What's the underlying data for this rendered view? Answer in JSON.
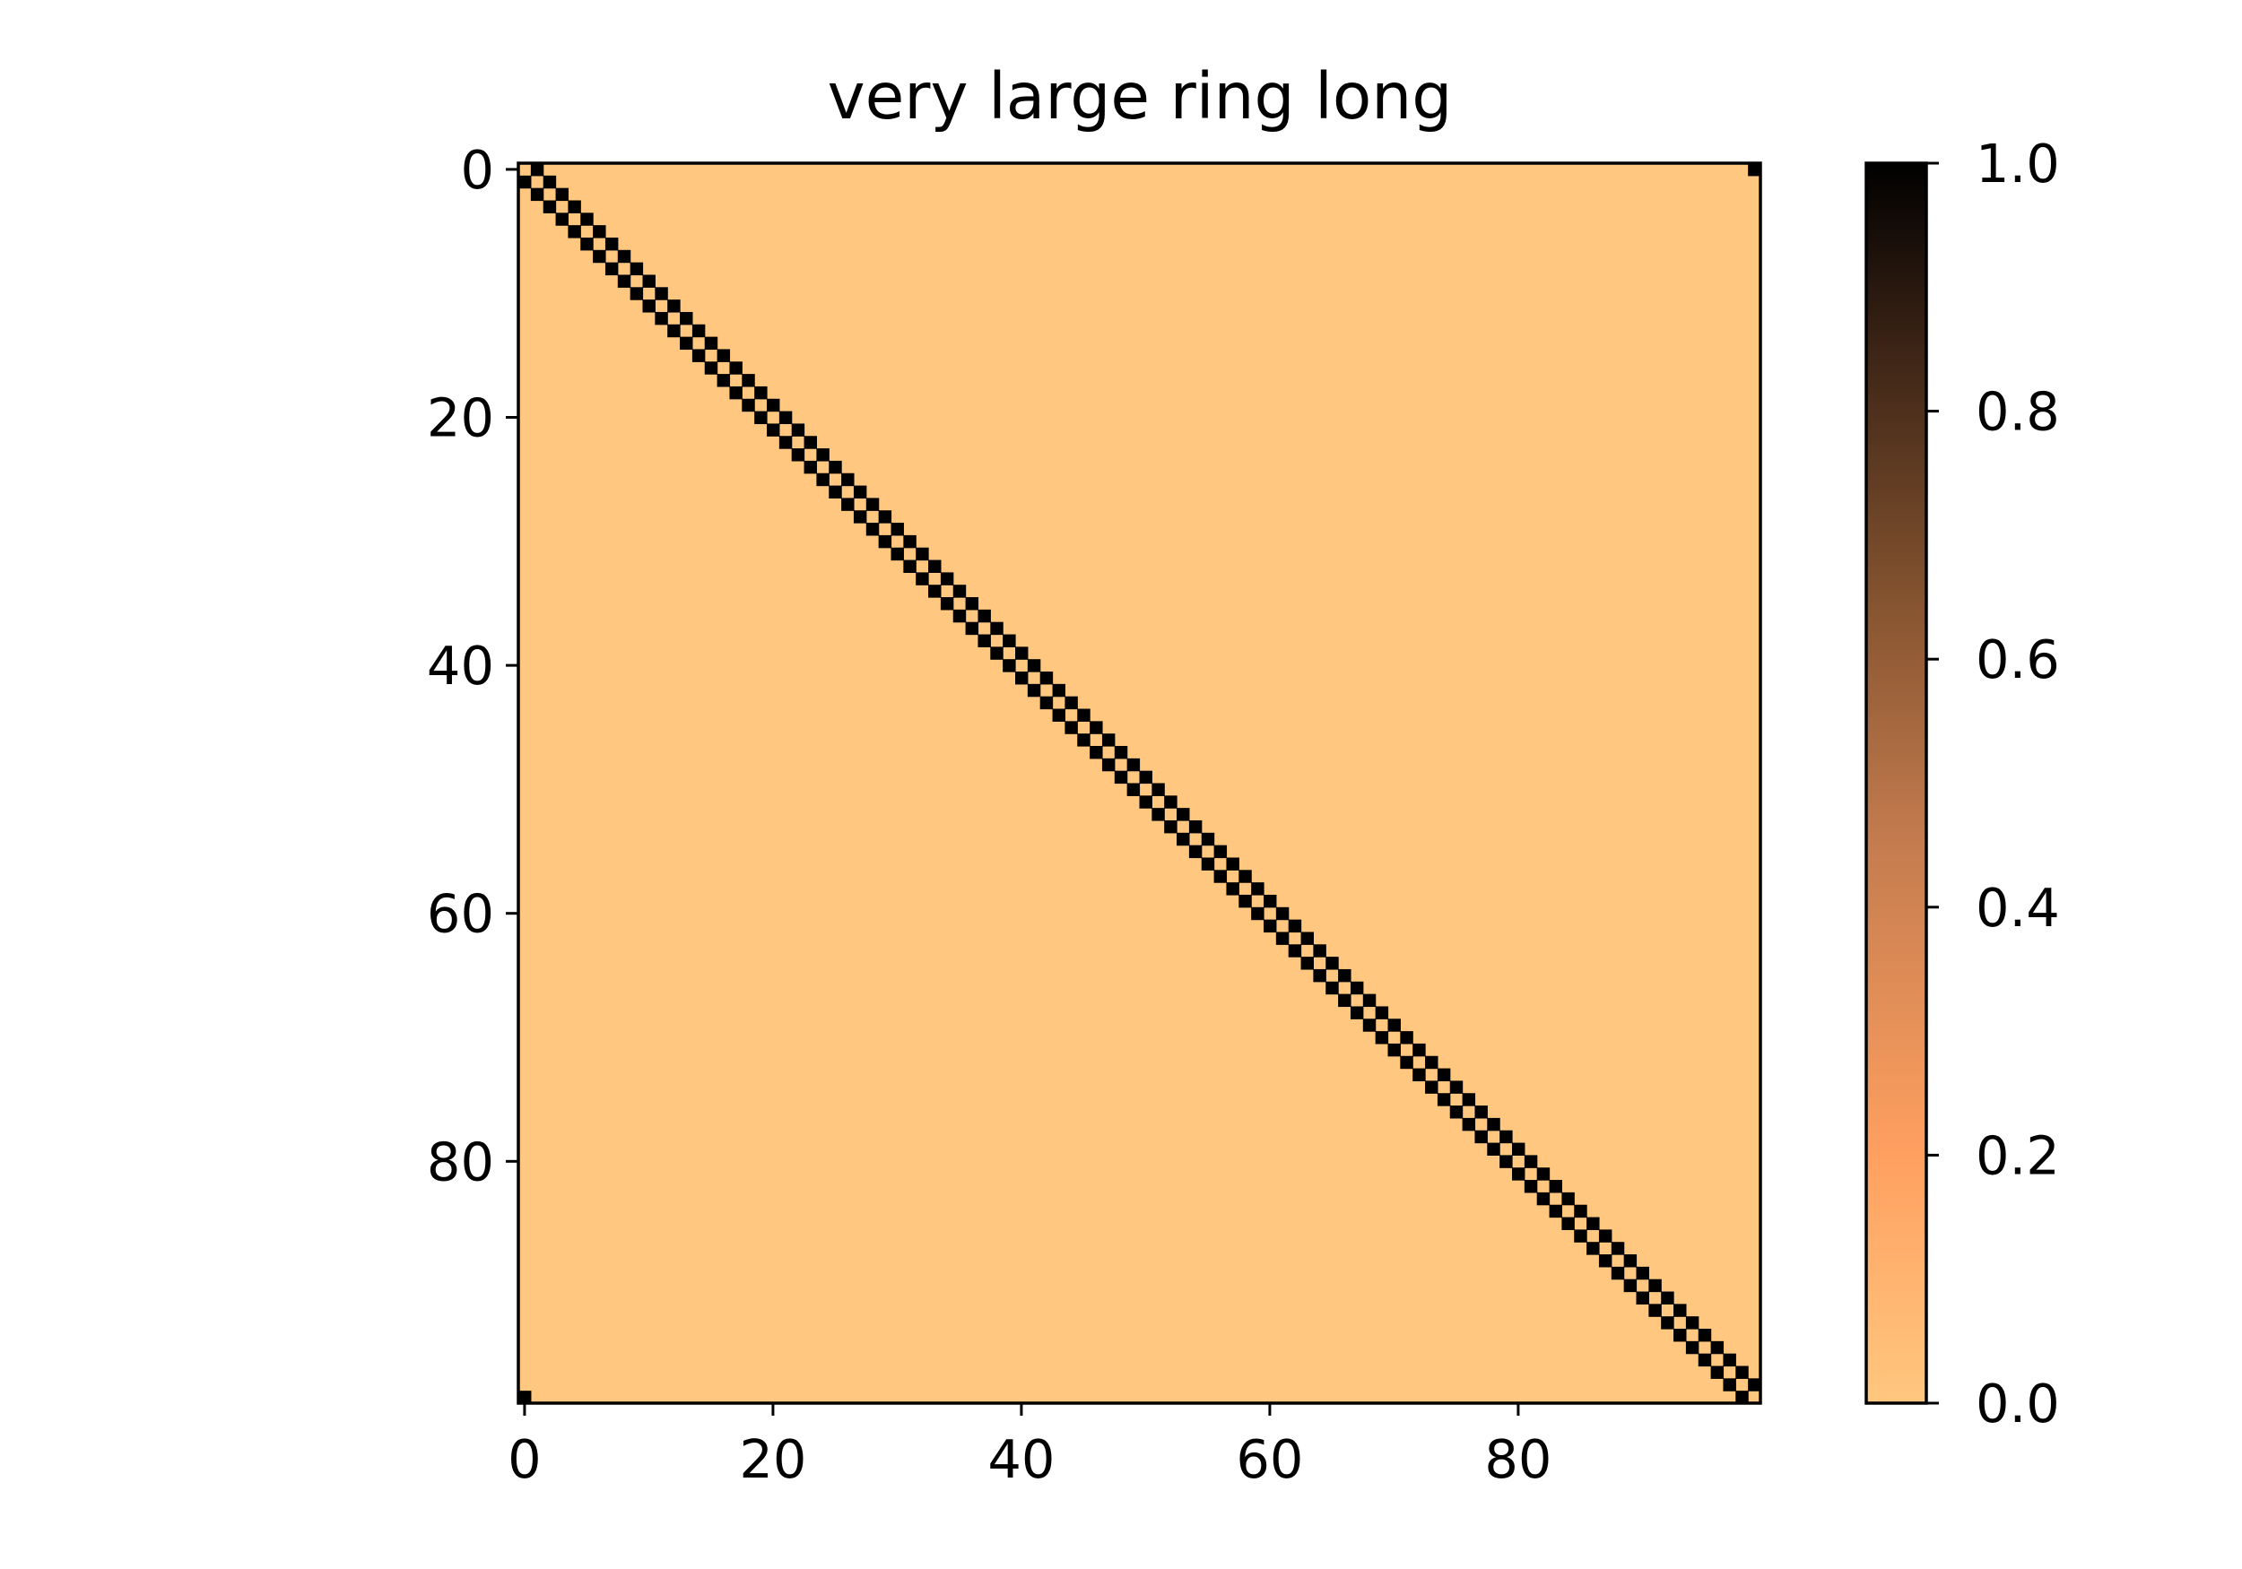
{
  "chart_data": {
    "type": "heatmap",
    "title": "very large ring long",
    "xlabel": "",
    "ylabel": "",
    "size": 100,
    "pattern": "ring adjacency: cell(i,j) = 1.0 when |i-j| == 1 or |i-j| == 99, else 0.0",
    "value_on": 1.0,
    "value_off": 0.0,
    "xlim": [
      -0.5,
      99.5
    ],
    "ylim": [
      99.5,
      -0.5
    ],
    "x_ticks": [
      0,
      20,
      40,
      60,
      80
    ],
    "x_tick_labels": [
      "0",
      "20",
      "40",
      "60",
      "80"
    ],
    "y_ticks": [
      0,
      20,
      40,
      60,
      80
    ],
    "y_tick_labels": [
      "0",
      "20",
      "40",
      "60",
      "80"
    ],
    "grid": false,
    "colorbar": {
      "position": "right",
      "range": [
        0.0,
        1.0
      ],
      "ticks": [
        0.0,
        0.2,
        0.4,
        0.6,
        0.8,
        1.0
      ],
      "tick_labels": [
        "0.0",
        "0.2",
        "0.4",
        "0.6",
        "0.8",
        "1.0"
      ]
    },
    "colormap": "copper_r",
    "colors": {
      "low": "#ffc77f",
      "mid_low": "#ffa060",
      "mid": "#b07048",
      "mid_high": "#5e3a22",
      "high": "#000000"
    }
  }
}
